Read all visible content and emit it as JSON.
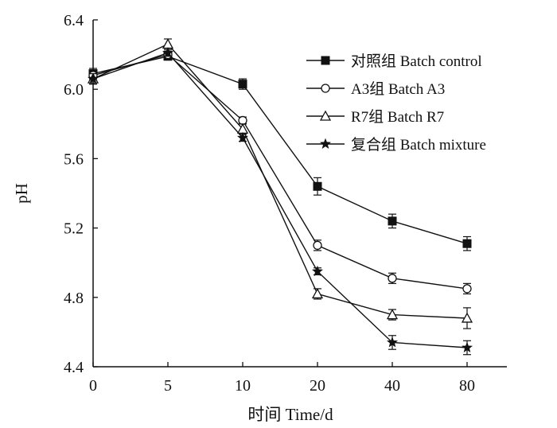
{
  "chart_data": {
    "type": "line",
    "title": "",
    "xlabel": "时间 Time/d",
    "ylabel": "pH",
    "categories": [
      "0",
      "5",
      "10",
      "20",
      "40",
      "80"
    ],
    "ylim": [
      4.4,
      6.4
    ],
    "yticks": [
      "4.4",
      "4.8",
      "5.2",
      "5.6",
      "6.0",
      "6.4"
    ],
    "grid": false,
    "legend_position": "top-right",
    "series": [
      {
        "name": "对照组 Batch control",
        "marker": "filled-square",
        "values": [
          6.09,
          6.19,
          6.03,
          5.44,
          5.24,
          5.11
        ],
        "errors": [
          0.03,
          0.02,
          0.03,
          0.05,
          0.04,
          0.04
        ]
      },
      {
        "name": "A3组 Batch A3",
        "marker": "open-circle",
        "values": [
          6.08,
          6.2,
          5.82,
          5.1,
          4.91,
          4.85
        ],
        "errors": [
          0.03,
          0.02,
          0.02,
          0.03,
          0.03,
          0.03
        ]
      },
      {
        "name": "R7组 Batch R7",
        "marker": "open-triangle",
        "values": [
          6.06,
          6.26,
          5.77,
          4.82,
          4.7,
          4.68
        ],
        "errors": [
          0.03,
          0.03,
          0.03,
          0.03,
          0.03,
          0.06
        ]
      },
      {
        "name": "复合组 Batch mixture",
        "marker": "filled-star",
        "values": [
          6.06,
          6.21,
          5.72,
          4.95,
          4.54,
          4.51
        ],
        "errors": [
          0.03,
          0.02,
          0.02,
          0.02,
          0.04,
          0.04
        ]
      }
    ]
  }
}
